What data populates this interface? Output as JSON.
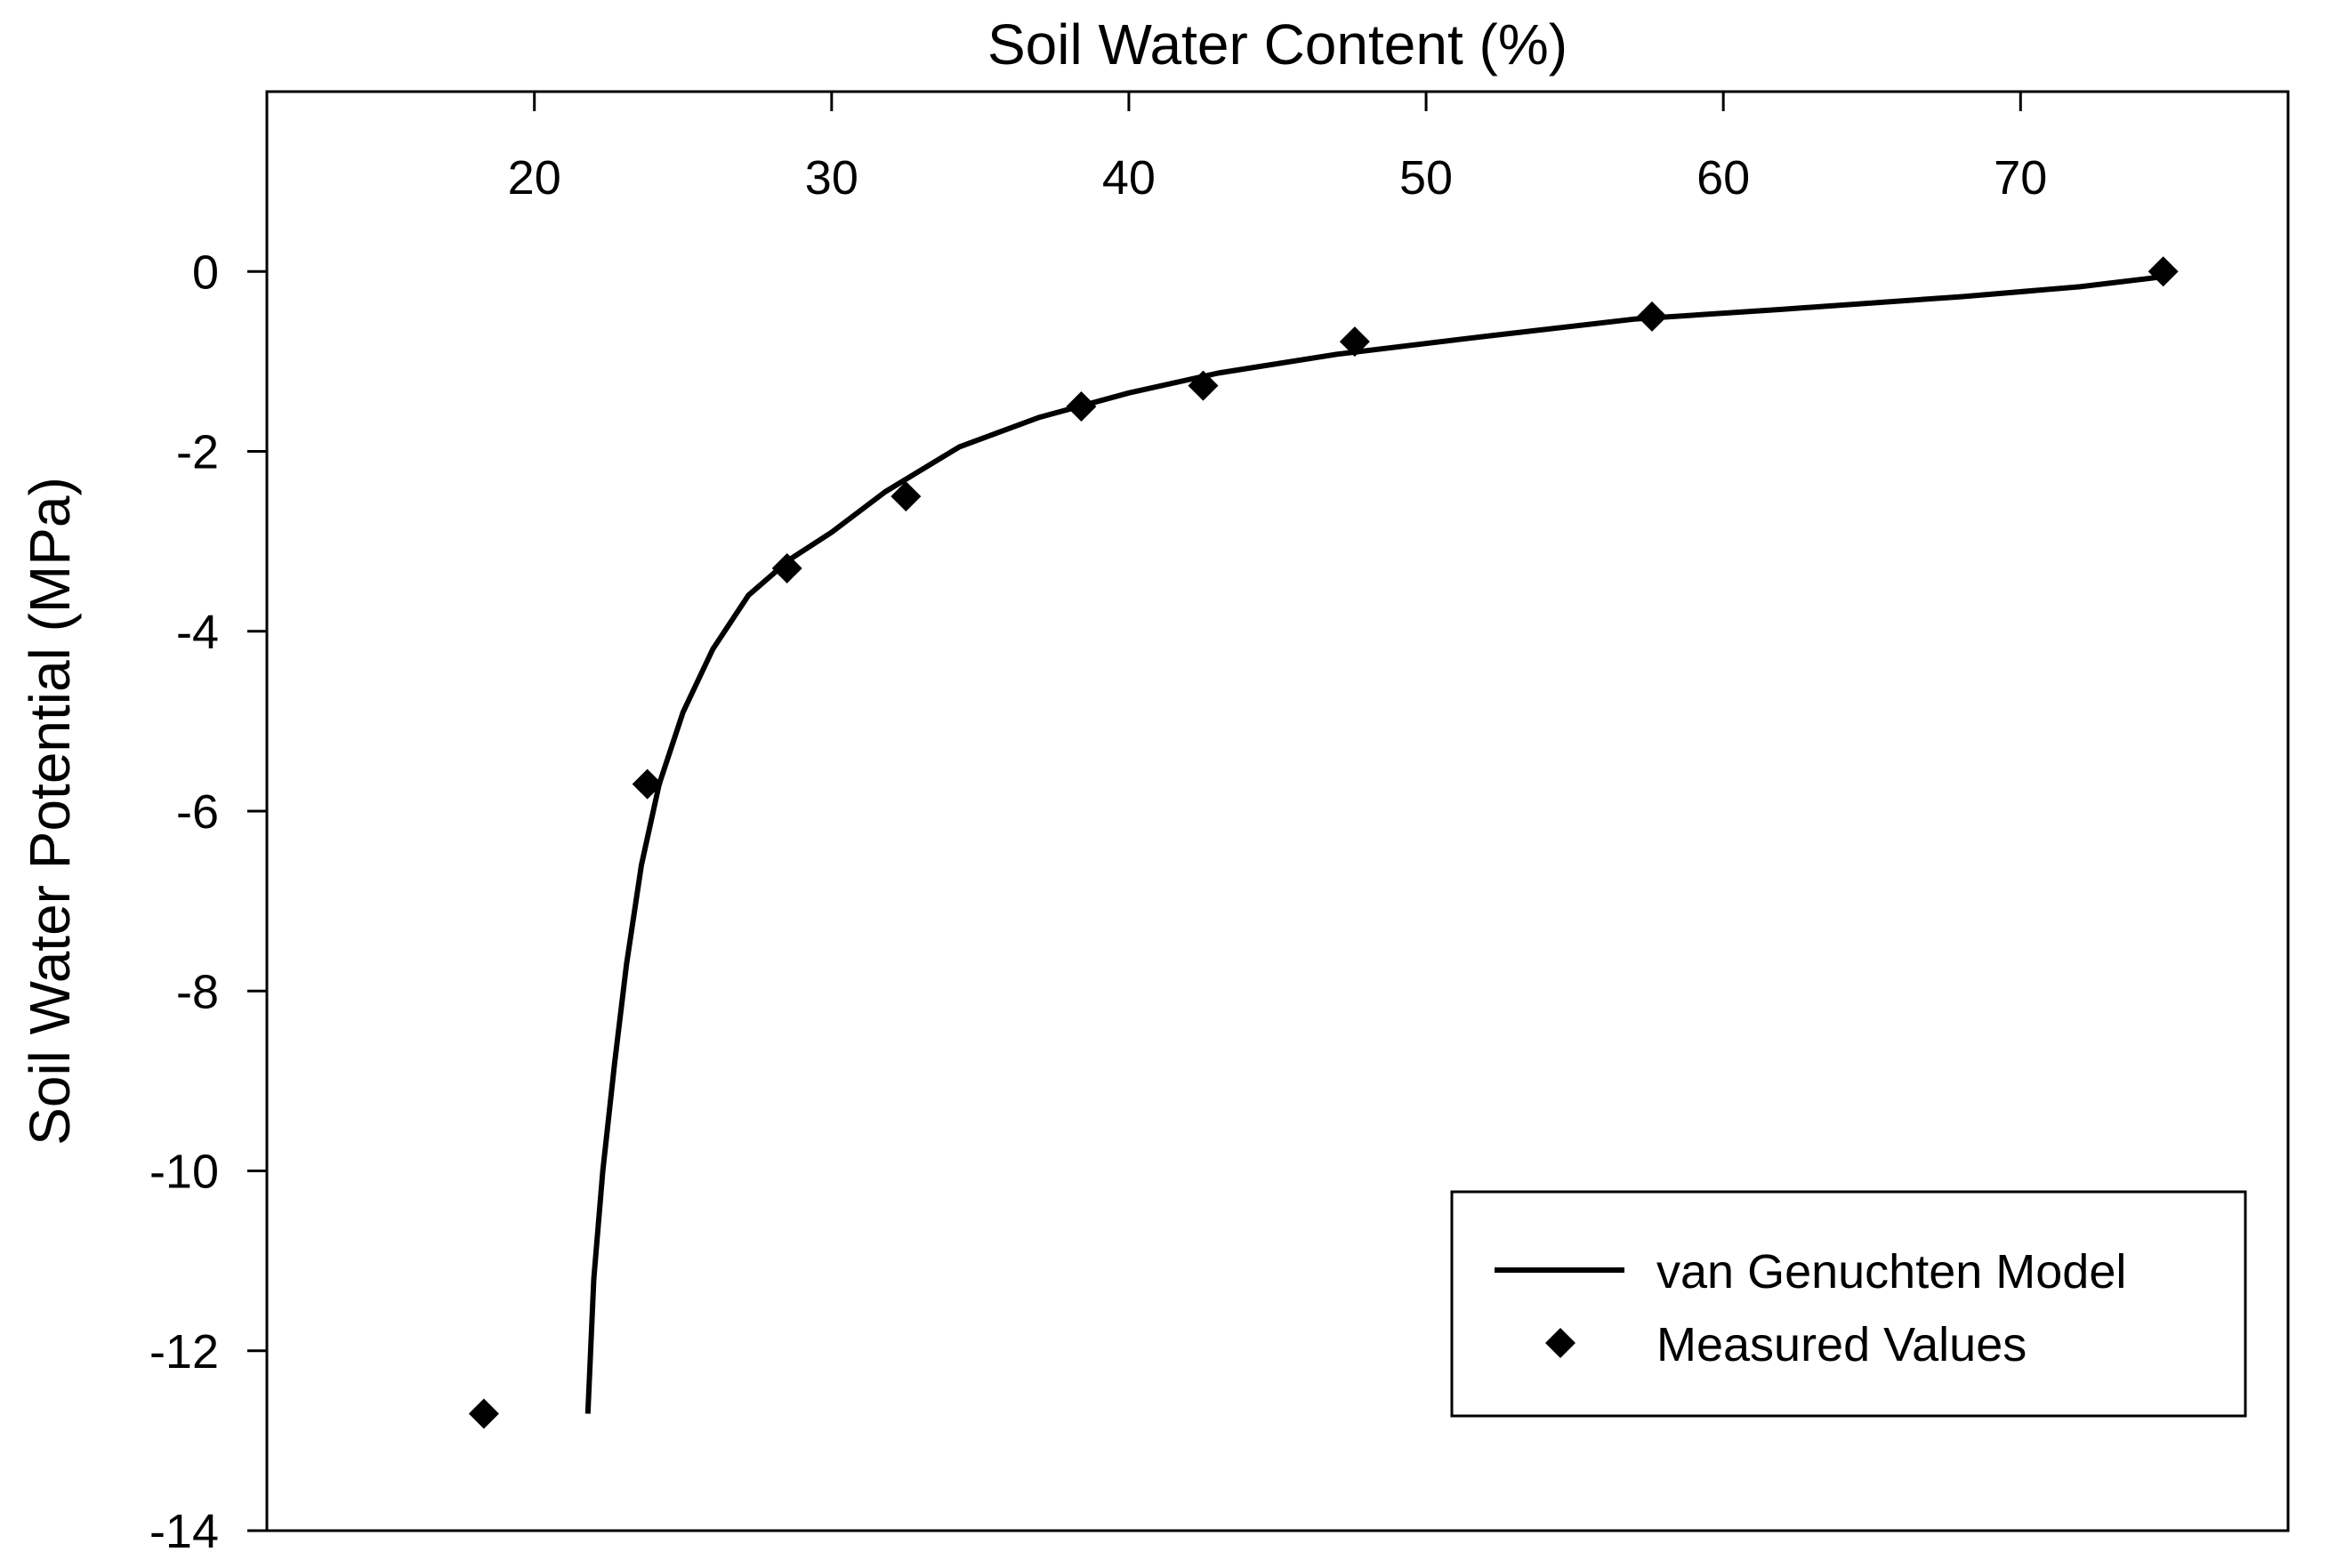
{
  "chart_data": {
    "type": "scatter",
    "title": "",
    "xlabel": "Soil Water Content (%)",
    "ylabel": "Soil Water Potential (MPa)",
    "x_axis_position": "top",
    "xlim": [
      11,
      79
    ],
    "ylim": [
      -14,
      2
    ],
    "x_ticks": [
      20,
      30,
      40,
      50,
      60,
      70
    ],
    "y_ticks": [
      0,
      -2,
      -4,
      -6,
      -8,
      -10,
      -12,
      -14
    ],
    "grid": false,
    "legend": {
      "position": "bottom-right",
      "framed": true
    },
    "series": [
      {
        "name": "van Genuchten Model",
        "kind": "line",
        "color": "#000000",
        "points": [
          [
            21.8,
            -12.7
          ],
          [
            22.0,
            -11.2
          ],
          [
            22.3,
            -10.0
          ],
          [
            22.7,
            -8.8
          ],
          [
            23.1,
            -7.7
          ],
          [
            23.6,
            -6.6
          ],
          [
            24.2,
            -5.7
          ],
          [
            25.0,
            -4.9
          ],
          [
            26.0,
            -4.2
          ],
          [
            27.2,
            -3.6
          ],
          [
            28.6,
            -3.2
          ],
          [
            30.0,
            -2.9
          ],
          [
            31.8,
            -2.45
          ],
          [
            34.3,
            -1.95
          ],
          [
            37.0,
            -1.62
          ],
          [
            40.0,
            -1.35
          ],
          [
            43.0,
            -1.13
          ],
          [
            47.0,
            -0.92
          ],
          [
            52.0,
            -0.72
          ],
          [
            57.0,
            -0.53
          ],
          [
            62.0,
            -0.42
          ],
          [
            68.0,
            -0.28
          ],
          [
            72.0,
            -0.17
          ],
          [
            75.0,
            -0.05
          ]
        ]
      },
      {
        "name": "Measured Values",
        "kind": "scatter",
        "marker": "diamond",
        "color": "#000000",
        "points": [
          [
            18.3,
            -12.7
          ],
          [
            23.8,
            -5.7
          ],
          [
            28.5,
            -3.3
          ],
          [
            32.5,
            -2.5
          ],
          [
            38.4,
            -1.5
          ],
          [
            42.5,
            -1.27
          ],
          [
            47.6,
            -0.78
          ],
          [
            57.6,
            -0.5
          ],
          [
            74.8,
            0.0
          ]
        ]
      }
    ]
  }
}
